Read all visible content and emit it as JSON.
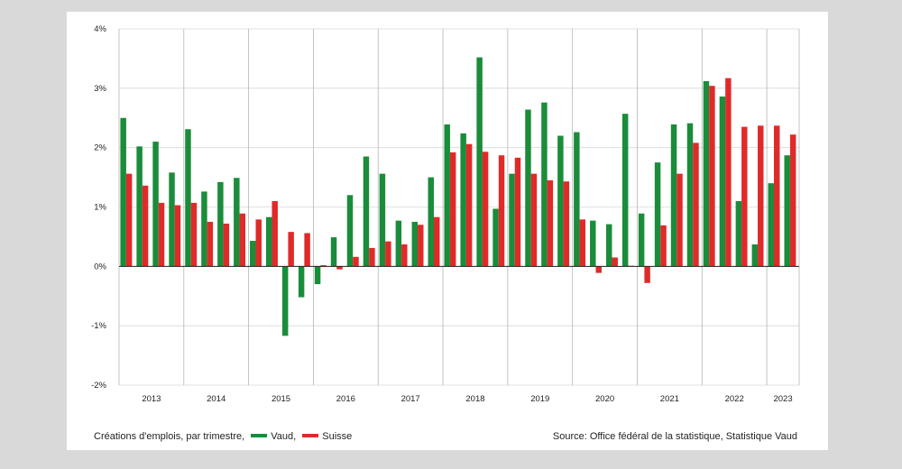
{
  "footer": {
    "caption": "Créations d'emplois, par trimestre,",
    "legend_vaud": "Vaud,",
    "legend_suisse": "Suisse",
    "source": "Source: Office fédéral de la statistique, Statistique Vaud"
  },
  "chart_data": {
    "type": "bar",
    "title": "",
    "xlabel": "",
    "ylabel": "",
    "ylim": [
      -2,
      4
    ],
    "yticks": [
      -2,
      -1,
      0,
      1,
      2,
      3,
      4
    ],
    "ytick_labels": [
      "-2%",
      "-1%",
      "0%",
      "1%",
      "2%",
      "3%",
      "4%"
    ],
    "grid": true,
    "colors": {
      "Vaud": "#1a8c3a",
      "Suisse": "#e02a2a"
    },
    "x": [
      "2013 T1",
      "2013 T2",
      "2013 T3",
      "2013 T4",
      "2014 T1",
      "2014 T2",
      "2014 T3",
      "2014 T4",
      "2015 T1",
      "2015 T2",
      "2015 T3",
      "2015 T4",
      "2016 T1",
      "2016 T2",
      "2016 T3",
      "2016 T4",
      "2017 T1",
      "2017 T2",
      "2017 T3",
      "2017 T4",
      "2018 T1",
      "2018 T2",
      "2018 T3",
      "2018 T4",
      "2019 T1",
      "2019 T2",
      "2019 T3",
      "2019 T4",
      "2020 T1",
      "2020 T2",
      "2020 T3",
      "2020 T4",
      "2021 T1",
      "2021 T2",
      "2021 T3",
      "2021 T4",
      "2022 T1",
      "2022 T2",
      "2022 T3",
      "2022 T4",
      "2023 T1",
      "2023 T2"
    ],
    "year_labels": [
      "2013",
      "2014",
      "2015",
      "2016",
      "2017",
      "2018",
      "2019",
      "2020",
      "2021",
      "2022",
      "2023"
    ],
    "series": [
      {
        "name": "Vaud",
        "values": [
          2.5,
          2.02,
          2.1,
          1.58,
          2.31,
          1.26,
          1.42,
          1.49,
          0.43,
          0.83,
          -1.17,
          -0.52,
          -0.3,
          0.49,
          1.2,
          1.85,
          1.56,
          0.77,
          0.75,
          1.5,
          2.39,
          2.24,
          3.52,
          0.97,
          1.56,
          2.64,
          2.76,
          2.2,
          2.26,
          0.77,
          0.71,
          2.57,
          0.89,
          1.75,
          2.39,
          2.41,
          3.12,
          2.86,
          1.1,
          0.37,
          1.4,
          1.87
        ]
      },
      {
        "name": "Suisse",
        "values": [
          1.56,
          1.36,
          1.07,
          1.03,
          1.07,
          0.75,
          0.72,
          0.89,
          0.79,
          1.1,
          0.58,
          0.56,
          0.02,
          -0.05,
          0.16,
          0.31,
          0.42,
          0.37,
          0.7,
          0.83,
          1.92,
          2.06,
          1.93,
          1.87,
          1.83,
          1.56,
          1.45,
          1.43,
          0.79,
          -0.11,
          0.15,
          0.01,
          -0.28,
          0.69,
          1.56,
          2.08,
          3.04,
          3.17,
          2.35,
          2.37,
          2.37,
          2.22
        ]
      }
    ]
  }
}
